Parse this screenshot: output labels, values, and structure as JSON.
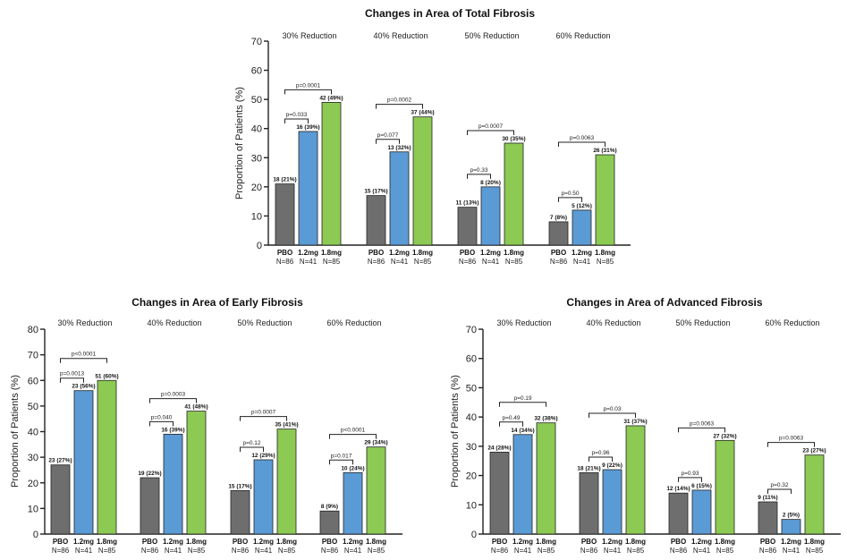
{
  "chart_data": [
    {
      "type": "bar",
      "title": "Changes in Area of Total Fibrosis",
      "ylabel": "Proportion of Patients (%)",
      "ylim": [
        0,
        70
      ],
      "yticks": [
        "0",
        "10",
        "20",
        "30",
        "40",
        "50",
        "60",
        "70"
      ],
      "groups": [
        {
          "label": "30% Reduction",
          "bars": [
            {
              "name": "PBO",
              "n": "N=86",
              "value": 21,
              "label": "18 (21%)"
            },
            {
              "name": "1.2mg",
              "n": "N=41",
              "value": 39,
              "label": "16 (39%)"
            },
            {
              "name": "1.8mg",
              "n": "N=85",
              "value": 49,
              "label": "42 (49%)"
            }
          ],
          "p_values": [
            "p=0.033",
            "p=0.0001"
          ]
        },
        {
          "label": "40% Reduction",
          "bars": [
            {
              "name": "PBO",
              "n": "N=86",
              "value": 17,
              "label": "15 (17%)"
            },
            {
              "name": "1.2mg",
              "n": "N=41",
              "value": 32,
              "label": "13 (32%)"
            },
            {
              "name": "1.8mg",
              "n": "N=85",
              "value": 44,
              "label": "37 (44%)"
            }
          ],
          "p_values": [
            "p=0.077",
            "p=0.0002"
          ]
        },
        {
          "label": "50% Reduction",
          "bars": [
            {
              "name": "PBO",
              "n": "N=86",
              "value": 13,
              "label": "11 (13%)"
            },
            {
              "name": "1.2mg",
              "n": "N=41",
              "value": 20,
              "label": "8 (20%)"
            },
            {
              "name": "1.8mg",
              "n": "N=85",
              "value": 35,
              "label": "30 (35%)"
            }
          ],
          "p_values": [
            "p=0.33",
            "p=0.0007"
          ]
        },
        {
          "label": "60% Reduction",
          "bars": [
            {
              "name": "PBO",
              "n": "N=86",
              "value": 8,
              "label": "7 (8%)"
            },
            {
              "name": "1.2mg",
              "n": "N=41",
              "value": 12,
              "label": "5 (12%)"
            },
            {
              "name": "1.8mg",
              "n": "N=85",
              "value": 31,
              "label": "26 (31%)"
            }
          ],
          "p_values": [
            "p=0.50",
            "p=0.0063"
          ]
        }
      ]
    },
    {
      "type": "bar",
      "title": "Changes in Area of Early Fibrosis",
      "ylabel": "Proportion of Patients (%)",
      "ylim": [
        0,
        80
      ],
      "yticks": [
        "0",
        "10",
        "20",
        "30",
        "40",
        "50",
        "60",
        "70",
        "80"
      ],
      "groups": [
        {
          "label": "30% Reduction",
          "bars": [
            {
              "name": "PBO",
              "n": "N=86",
              "value": 27,
              "label": "23 (27%)"
            },
            {
              "name": "1.2mg",
              "n": "N=41",
              "value": 56,
              "label": "23 (56%)"
            },
            {
              "name": "1.8mg",
              "n": "N=85",
              "value": 60,
              "label": "51 (60%)"
            }
          ],
          "p_values": [
            "p=0.0013",
            "p<0.0001"
          ]
        },
        {
          "label": "40% Reduction",
          "bars": [
            {
              "name": "PBO",
              "n": "N=86",
              "value": 22,
              "label": "19 (22%)"
            },
            {
              "name": "1.2mg",
              "n": "N=41",
              "value": 39,
              "label": "16 (39%)"
            },
            {
              "name": "1.8mg",
              "n": "N=85",
              "value": 48,
              "label": "41 (48%)"
            }
          ],
          "p_values": [
            "p=0.040",
            "p=0.0003"
          ]
        },
        {
          "label": "50% Reduction",
          "bars": [
            {
              "name": "PBO",
              "n": "N=86",
              "value": 17,
              "label": "15 (17%)"
            },
            {
              "name": "1.2mg",
              "n": "N=41",
              "value": 29,
              "label": "12 (29%)"
            },
            {
              "name": "1.8mg",
              "n": "N=85",
              "value": 41,
              "label": "35 (41%)"
            }
          ],
          "p_values": [
            "p=0.12",
            "p=0.0007"
          ]
        },
        {
          "label": "60% Reduction",
          "bars": [
            {
              "name": "PBO",
              "n": "N=86",
              "value": 9,
              "label": "8 (9%)"
            },
            {
              "name": "1.2mg",
              "n": "N=41",
              "value": 24,
              "label": "10 (24%)"
            },
            {
              "name": "1.8mg",
              "n": "N=85",
              "value": 34,
              "label": "29 (34%)"
            }
          ],
          "p_values": [
            "p=0.017",
            "p<0.0001"
          ]
        }
      ]
    },
    {
      "type": "bar",
      "title": "Changes in Area of Advanced Fibrosis",
      "ylabel": "Proportion of Patients (%)",
      "ylim": [
        0,
        70
      ],
      "yticks": [
        "0",
        "10",
        "20",
        "30",
        "40",
        "50",
        "60",
        "70"
      ],
      "groups": [
        {
          "label": "30% Reduction",
          "bars": [
            {
              "name": "PBO",
              "n": "N=86",
              "value": 28,
              "label": "24 (28%)"
            },
            {
              "name": "1.2mg",
              "n": "N=41",
              "value": 34,
              "label": "14 (34%)"
            },
            {
              "name": "1.8mg",
              "n": "N=85",
              "value": 38,
              "label": "32 (38%)"
            }
          ],
          "p_values": [
            "p=0.49",
            "p=0.19"
          ]
        },
        {
          "label": "40% Reduction",
          "bars": [
            {
              "name": "PBO",
              "n": "N=86",
              "value": 21,
              "label": "18 (21%)"
            },
            {
              "name": "1.2mg",
              "n": "N=41",
              "value": 22,
              "label": "9 (22%)"
            },
            {
              "name": "1.8mg",
              "n": "N=85",
              "value": 37,
              "label": "31 (37%)"
            }
          ],
          "p_values": [
            "p=0.96",
            "p=0.03"
          ]
        },
        {
          "label": "50% Reduction",
          "bars": [
            {
              "name": "PBO",
              "n": "N=86",
              "value": 14,
              "label": "12 (14%)"
            },
            {
              "name": "1.2mg",
              "n": "N=41",
              "value": 15,
              "label": "6 (15%)"
            },
            {
              "name": "1.8mg",
              "n": "N=85",
              "value": 32,
              "label": "27 (32%)"
            }
          ],
          "p_values": [
            "p=0.93",
            "p=0.0063"
          ]
        },
        {
          "label": "60% Reduction",
          "bars": [
            {
              "name": "PBO",
              "n": "N=86",
              "value": 11,
              "label": "9 (11%)"
            },
            {
              "name": "1.2mg",
              "n": "N=41",
              "value": 5,
              "label": "2 (5%)"
            },
            {
              "name": "1.8mg",
              "n": "N=85",
              "value": 27,
              "label": "23 (27%)"
            }
          ],
          "p_values": [
            "p=0.32",
            "p=0.0063"
          ]
        }
      ]
    }
  ],
  "colors": {
    "pbo": "#6e6e6e",
    "low_dose": "#5b9bd5",
    "high_dose": "#8cca53"
  }
}
